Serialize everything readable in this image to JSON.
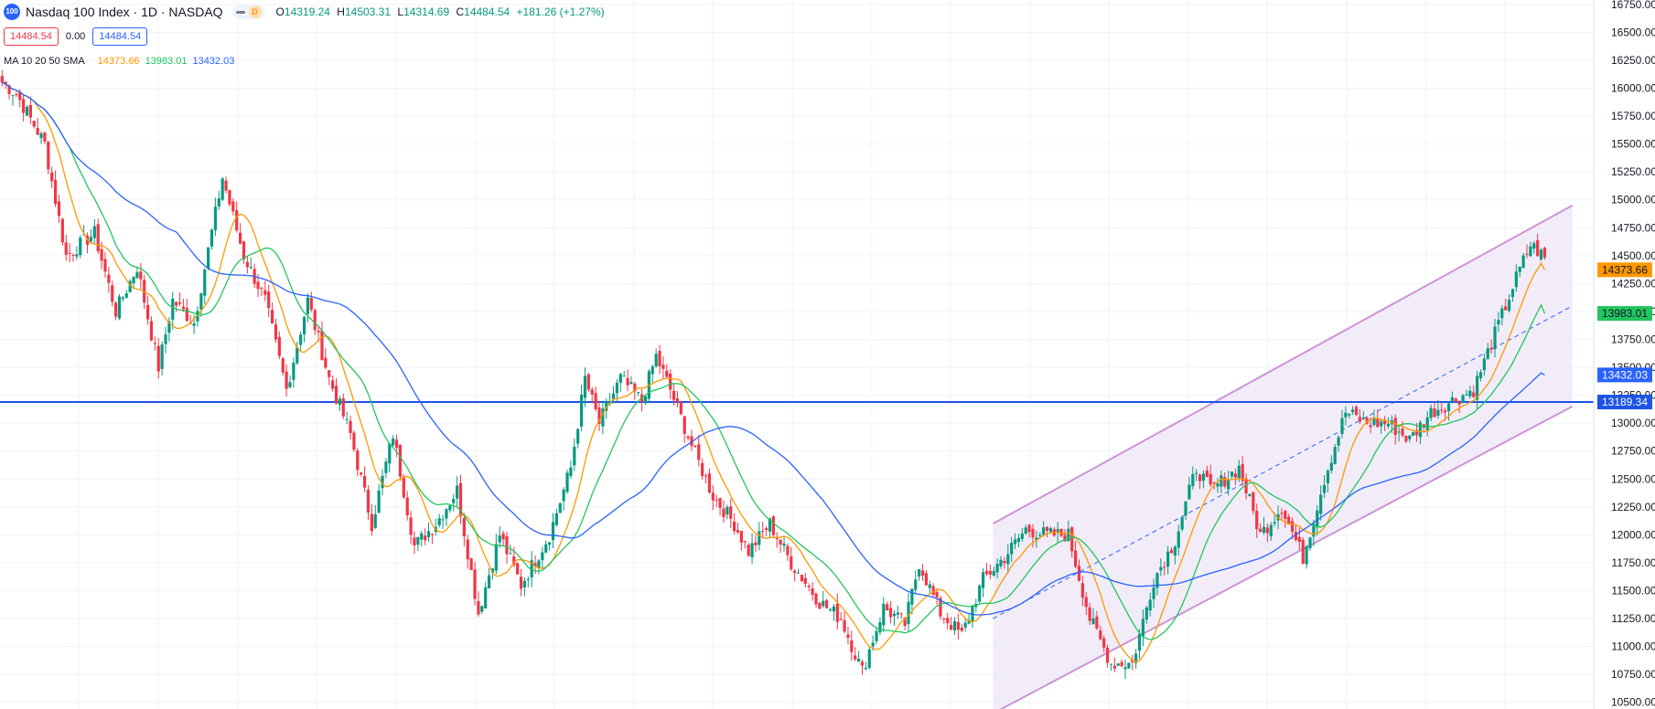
{
  "header": {
    "symbol_badge": "100",
    "title": "Nasdaq 100 Index · 1D · NASDAQ",
    "interval_badge": "D",
    "ohlc": {
      "open_label": "O",
      "open": "14319.24",
      "high_label": "H",
      "high": "14503.31",
      "low_label": "L",
      "low": "14314.69",
      "close_label": "C",
      "close": "14484.54",
      "change": "+181.26 (+1.27%)"
    },
    "bid": "14484.54",
    "spread": "0.00",
    "ask": "14484.54"
  },
  "ma_legend": {
    "label": "MA 10 20 50 SMA",
    "ma10": "14373.66",
    "ma20": "13983.01",
    "ma50": "13432.03"
  },
  "colors": {
    "up": "#089981",
    "down": "#f23645",
    "ma10": "#ff9800",
    "ma20": "#22c55e",
    "ma50": "#2962ff",
    "hline": "#1e53e5",
    "channel": "#ce93d8",
    "channel_fill": "#ede7f6"
  },
  "chart_data": {
    "type": "candlestick",
    "y_axis_ticks": [
      10500,
      10750,
      11000,
      11250,
      11500,
      11750,
      12000,
      12250,
      12500,
      12750,
      13000,
      13250,
      13500,
      13750,
      14000,
      14250,
      14500,
      14750,
      15000,
      15250,
      15500,
      15750,
      16000,
      16250,
      16500,
      16750
    ],
    "y_tick_labels": [
      "10500.00",
      "10750.00",
      "11000.00",
      "11250.00",
      "11500.00",
      "11750.00",
      "12000.00",
      "12250.00",
      "12500.00",
      "12750.00",
      "13000.00",
      "13250.00",
      "13500.00",
      "13750.00",
      "14000.00",
      "14250.00",
      "14500.00",
      "14750.00",
      "15000.00",
      "15250.00",
      "15500.00",
      "15750.00",
      "16000.00",
      "16250.00",
      "16500.00",
      "16750.00"
    ],
    "ylim": [
      10440,
      16790
    ],
    "bar_count": 240,
    "price_path": [
      [
        0,
        16050
      ],
      [
        4,
        15950
      ],
      [
        12,
        15500
      ],
      [
        18,
        14500
      ],
      [
        26,
        14700
      ],
      [
        32,
        14000
      ],
      [
        38,
        14400
      ],
      [
        44,
        13500
      ],
      [
        48,
        14100
      ],
      [
        54,
        13900
      ],
      [
        62,
        15200
      ],
      [
        68,
        14500
      ],
      [
        74,
        14100
      ],
      [
        80,
        13300
      ],
      [
        86,
        14100
      ],
      [
        92,
        13400
      ],
      [
        98,
        12900
      ],
      [
        104,
        12100
      ],
      [
        110,
        12900
      ],
      [
        116,
        11900
      ],
      [
        122,
        12100
      ],
      [
        128,
        12400
      ],
      [
        134,
        11300
      ],
      [
        140,
        12000
      ],
      [
        146,
        11550
      ],
      [
        154,
        12000
      ],
      [
        160,
        12600
      ],
      [
        164,
        13400
      ],
      [
        168,
        13000
      ],
      [
        174,
        13400
      ],
      [
        180,
        13200
      ],
      [
        184,
        13600
      ],
      [
        188,
        13300
      ],
      [
        194,
        12800
      ],
      [
        200,
        12350
      ],
      [
        206,
        12100
      ],
      [
        210,
        11850
      ],
      [
        216,
        12100
      ],
      [
        222,
        11750
      ],
      [
        230,
        11400
      ],
      [
        236,
        11250
      ],
      [
        242,
        10780
      ],
      [
        248,
        11350
      ],
      [
        254,
        11200
      ],
      [
        258,
        11750
      ],
      [
        264,
        11300
      ],
      [
        270,
        11100
      ],
      [
        276,
        11600
      ],
      [
        282,
        11800
      ],
      [
        288,
        12050
      ],
      [
        294,
        12000
      ],
      [
        300,
        12000
      ],
      [
        306,
        11250
      ],
      [
        312,
        10850
      ],
      [
        318,
        10850
      ],
      [
        324,
        11600
      ],
      [
        330,
        11950
      ],
      [
        336,
        12600
      ],
      [
        340,
        12400
      ],
      [
        344,
        12500
      ],
      [
        348,
        12600
      ],
      [
        354,
        12000
      ],
      [
        360,
        12250
      ],
      [
        366,
        11800
      ],
      [
        372,
        12500
      ],
      [
        378,
        13100
      ],
      [
        384,
        13000
      ],
      [
        390,
        13000
      ],
      [
        396,
        12850
      ],
      [
        402,
        13100
      ],
      [
        408,
        13200
      ],
      [
        414,
        13300
      ],
      [
        420,
        13800
      ],
      [
        426,
        14300
      ],
      [
        430,
        14600
      ],
      [
        434,
        14484
      ]
    ],
    "path_bars": 435,
    "hline_value": 13189.34,
    "hline_label": "13189.34",
    "channel_upper": [
      [
        0.6,
        12100
      ],
      [
        0.95,
        14950
      ]
    ],
    "channel_lower": [
      [
        0.6,
        10400
      ],
      [
        0.95,
        13150
      ]
    ],
    "ma_labels": {
      "ma10": "14373.66",
      "ma20": "13983.01",
      "ma50": "13432.03"
    },
    "ma_last": {
      "ma10": 14373.66,
      "ma20": 13983.01,
      "ma50": 13432.03
    }
  }
}
